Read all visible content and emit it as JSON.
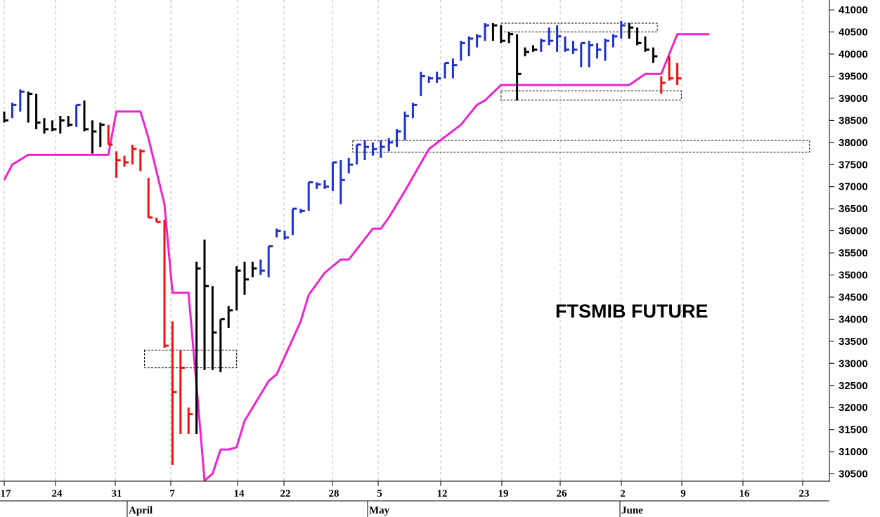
{
  "chart_data": {
    "type": "ohlc-bar",
    "title": "FTSMIB FUTURE",
    "y_axis": {
      "position": "right",
      "ticks": [
        30500,
        31000,
        31500,
        32000,
        32500,
        33000,
        33500,
        34000,
        34500,
        35000,
        35500,
        36000,
        36500,
        37000,
        37500,
        38000,
        38500,
        39000,
        39500,
        40000,
        40500,
        41000
      ],
      "ylim": [
        30250,
        41200
      ]
    },
    "x_axis": {
      "day_ticks": [
        "17",
        "24",
        "31",
        "7",
        "14",
        "22",
        "28",
        "5",
        "12",
        "19",
        "26",
        "2",
        "9",
        "16",
        "23"
      ],
      "months": [
        "April",
        "May",
        "June"
      ]
    },
    "bar_colors": {
      "up": "#1f2fd0",
      "down": "#ee1111",
      "neutral": "#000000"
    },
    "line_color": "#ee22d0",
    "bars": [
      {
        "x": 0,
        "h": 38700,
        "l": 38450,
        "c": 38500,
        "col": "k"
      },
      {
        "x": 1,
        "h": 38900,
        "l": 38550,
        "c": 38850,
        "col": "b"
      },
      {
        "x": 2,
        "h": 39200,
        "l": 38700,
        "c": 39150,
        "col": "b"
      },
      {
        "x": 3,
        "h": 39150,
        "l": 38450,
        "c": 39100,
        "col": "k"
      },
      {
        "x": 4,
        "h": 39100,
        "l": 38300,
        "c": 38450,
        "col": "k"
      },
      {
        "x": 5,
        "h": 38550,
        "l": 38200,
        "c": 38300,
        "col": "k"
      },
      {
        "x": 6,
        "h": 38500,
        "l": 38250,
        "c": 38300,
        "col": "k"
      },
      {
        "x": 7,
        "h": 38600,
        "l": 38200,
        "c": 38500,
        "col": "k"
      },
      {
        "x": 8,
        "h": 38600,
        "l": 38350,
        "c": 38400,
        "col": "k"
      },
      {
        "x": 9,
        "h": 38850,
        "l": 38350,
        "c": 38850,
        "col": "b"
      },
      {
        "x": 10,
        "h": 38950,
        "l": 38250,
        "c": 38300,
        "col": "k"
      },
      {
        "x": 11,
        "h": 38500,
        "l": 37750,
        "c": 38250,
        "col": "k"
      },
      {
        "x": 12,
        "h": 38450,
        "l": 37900,
        "c": 38400,
        "col": "k"
      },
      {
        "x": 13,
        "h": 38400,
        "l": 37950,
        "c": 37950,
        "col": "r"
      },
      {
        "x": 14,
        "h": 37800,
        "l": 37200,
        "c": 37600,
        "col": "r"
      },
      {
        "x": 15,
        "h": 37700,
        "l": 37450,
        "c": 37550,
        "col": "r"
      },
      {
        "x": 16,
        "h": 37950,
        "l": 37500,
        "c": 37850,
        "col": "r"
      },
      {
        "x": 17,
        "h": 37850,
        "l": 37350,
        "c": 37800,
        "col": "r"
      },
      {
        "x": 18,
        "h": 37200,
        "l": 36300,
        "c": 36300,
        "col": "r"
      },
      {
        "x": 19,
        "h": 36300,
        "l": 36200,
        "c": 36200,
        "col": "r"
      },
      {
        "x": 20,
        "h": 36250,
        "l": 33350,
        "c": 33400,
        "col": "r"
      },
      {
        "x": 21,
        "h": 33950,
        "l": 30700,
        "c": 32350,
        "col": "r"
      },
      {
        "x": 22,
        "h": 33300,
        "l": 31400,
        "c": 32900,
        "col": "r"
      },
      {
        "x": 23,
        "h": 32000,
        "l": 31400,
        "c": 31850,
        "col": "r"
      },
      {
        "x": 24,
        "h": 35300,
        "l": 31400,
        "c": 35150,
        "col": "k"
      },
      {
        "x": 25,
        "h": 35800,
        "l": 32850,
        "c": 34750,
        "col": "k"
      },
      {
        "x": 26,
        "h": 34750,
        "l": 32850,
        "c": 33700,
        "col": "k"
      },
      {
        "x": 27,
        "h": 34000,
        "l": 32800,
        "c": 34000,
        "col": "k"
      },
      {
        "x": 28,
        "h": 34300,
        "l": 33800,
        "c": 34200,
        "col": "k"
      },
      {
        "x": 29,
        "h": 35200,
        "l": 34200,
        "c": 35100,
        "col": "k"
      },
      {
        "x": 30,
        "h": 35300,
        "l": 34550,
        "c": 34900,
        "col": "k"
      },
      {
        "x": 31,
        "h": 35300,
        "l": 34950,
        "c": 35150,
        "col": "k"
      },
      {
        "x": 32,
        "h": 35350,
        "l": 35000,
        "c": 35100,
        "col": "b"
      },
      {
        "x": 33,
        "h": 35650,
        "l": 34950,
        "c": 35650,
        "col": "b"
      },
      {
        "x": 34,
        "h": 36050,
        "l": 35850,
        "c": 36000,
        "col": "b"
      },
      {
        "x": 35,
        "h": 36000,
        "l": 35800,
        "c": 35850,
        "col": "b"
      },
      {
        "x": 36,
        "h": 36500,
        "l": 35900,
        "c": 36500,
        "col": "b"
      },
      {
        "x": 37,
        "h": 36500,
        "l": 36400,
        "c": 36450,
        "col": "b"
      },
      {
        "x": 38,
        "h": 37100,
        "l": 36450,
        "c": 37100,
        "col": "b"
      },
      {
        "x": 39,
        "h": 37100,
        "l": 36950,
        "c": 37050,
        "col": "b"
      },
      {
        "x": 40,
        "h": 37150,
        "l": 36950,
        "c": 37000,
        "col": "b"
      },
      {
        "x": 41,
        "h": 37550,
        "l": 36900,
        "c": 37550,
        "col": "b"
      },
      {
        "x": 42,
        "h": 37600,
        "l": 36600,
        "c": 37150,
        "col": "b"
      },
      {
        "x": 43,
        "h": 37650,
        "l": 37300,
        "c": 37500,
        "col": "b"
      },
      {
        "x": 44,
        "h": 37950,
        "l": 37500,
        "c": 37950,
        "col": "b"
      },
      {
        "x": 45,
        "h": 38050,
        "l": 37600,
        "c": 37900,
        "col": "b"
      },
      {
        "x": 46,
        "h": 38000,
        "l": 37700,
        "c": 37850,
        "col": "b"
      },
      {
        "x": 47,
        "h": 38050,
        "l": 37650,
        "c": 37900,
        "col": "b"
      },
      {
        "x": 48,
        "h": 38100,
        "l": 37800,
        "c": 38000,
        "col": "b"
      },
      {
        "x": 49,
        "h": 38300,
        "l": 37900,
        "c": 38250,
        "col": "b"
      },
      {
        "x": 50,
        "h": 38700,
        "l": 38050,
        "c": 38600,
        "col": "b"
      },
      {
        "x": 51,
        "h": 38900,
        "l": 38550,
        "c": 38850,
        "col": "b"
      },
      {
        "x": 52,
        "h": 39600,
        "l": 39050,
        "c": 39500,
        "col": "b"
      },
      {
        "x": 53,
        "h": 39500,
        "l": 39350,
        "c": 39450,
        "col": "b"
      },
      {
        "x": 54,
        "h": 39600,
        "l": 39350,
        "c": 39450,
        "col": "b"
      },
      {
        "x": 55,
        "h": 39800,
        "l": 39450,
        "c": 39800,
        "col": "b"
      },
      {
        "x": 56,
        "h": 39900,
        "l": 39450,
        "c": 39750,
        "col": "b"
      },
      {
        "x": 57,
        "h": 40300,
        "l": 39850,
        "c": 40250,
        "col": "b"
      },
      {
        "x": 58,
        "h": 40400,
        "l": 39950,
        "c": 40350,
        "col": "b"
      },
      {
        "x": 59,
        "h": 40450,
        "l": 40150,
        "c": 40400,
        "col": "b"
      },
      {
        "x": 60,
        "h": 40700,
        "l": 40300,
        "c": 40650,
        "col": "b"
      },
      {
        "x": 61,
        "h": 40700,
        "l": 40300,
        "c": 40650,
        "col": "k"
      },
      {
        "x": 62,
        "h": 40650,
        "l": 40250,
        "c": 40300,
        "col": "k"
      },
      {
        "x": 63,
        "h": 40500,
        "l": 40250,
        "c": 40450,
        "col": "k"
      },
      {
        "x": 64,
        "h": 40450,
        "l": 38950,
        "c": 39550,
        "col": "k"
      },
      {
        "x": 65,
        "h": 40150,
        "l": 39950,
        "c": 40050,
        "col": "k"
      },
      {
        "x": 66,
        "h": 40200,
        "l": 40050,
        "c": 40100,
        "col": "k"
      },
      {
        "x": 67,
        "h": 40350,
        "l": 40050,
        "c": 40300,
        "col": "b"
      },
      {
        "x": 68,
        "h": 40600,
        "l": 40200,
        "c": 40300,
        "col": "b"
      },
      {
        "x": 69,
        "h": 40650,
        "l": 40050,
        "c": 40400,
        "col": "b"
      },
      {
        "x": 70,
        "h": 40400,
        "l": 40050,
        "c": 40100,
        "col": "b"
      },
      {
        "x": 71,
        "h": 40300,
        "l": 40000,
        "c": 40100,
        "col": "b"
      },
      {
        "x": 72,
        "h": 40250,
        "l": 39700,
        "c": 40250,
        "col": "b"
      },
      {
        "x": 73,
        "h": 40300,
        "l": 39700,
        "c": 40200,
        "col": "b"
      },
      {
        "x": 74,
        "h": 40250,
        "l": 39900,
        "c": 40100,
        "col": "b"
      },
      {
        "x": 75,
        "h": 40350,
        "l": 39850,
        "c": 40300,
        "col": "b"
      },
      {
        "x": 76,
        "h": 40450,
        "l": 40150,
        "c": 40400,
        "col": "b"
      },
      {
        "x": 77,
        "h": 40750,
        "l": 40350,
        "c": 40650,
        "col": "b"
      },
      {
        "x": 78,
        "h": 40700,
        "l": 40350,
        "c": 40600,
        "col": "k"
      },
      {
        "x": 79,
        "h": 40600,
        "l": 40200,
        "c": 40250,
        "col": "k"
      },
      {
        "x": 80,
        "h": 40400,
        "l": 40050,
        "c": 40100,
        "col": "k"
      },
      {
        "x": 81,
        "h": 40150,
        "l": 39800,
        "c": 39950,
        "col": "k"
      },
      {
        "x": 82,
        "h": 39500,
        "l": 39100,
        "c": 39350,
        "col": "r"
      },
      {
        "x": 83,
        "h": 39950,
        "l": 39400,
        "c": 39450,
        "col": "r"
      },
      {
        "x": 84,
        "h": 39800,
        "l": 39300,
        "c": 39450,
        "col": "r"
      }
    ],
    "line": [
      {
        "x": 0,
        "y": 37150
      },
      {
        "x": 1,
        "y": 37500
      },
      {
        "x": 3,
        "y": 37720
      },
      {
        "x": 13,
        "y": 37720
      },
      {
        "x": 14,
        "y": 38700
      },
      {
        "x": 17,
        "y": 38700
      },
      {
        "x": 18,
        "y": 38100
      },
      {
        "x": 20,
        "y": 36600
      },
      {
        "x": 21,
        "y": 34600
      },
      {
        "x": 23,
        "y": 34600
      },
      {
        "x": 24,
        "y": 32500
      },
      {
        "x": 25,
        "y": 30350
      },
      {
        "x": 26,
        "y": 30500
      },
      {
        "x": 27,
        "y": 31050
      },
      {
        "x": 28,
        "y": 31050
      },
      {
        "x": 29,
        "y": 31100
      },
      {
        "x": 30,
        "y": 31700
      },
      {
        "x": 33,
        "y": 32600
      },
      {
        "x": 34,
        "y": 32750
      },
      {
        "x": 36,
        "y": 33550
      },
      {
        "x": 37,
        "y": 33950
      },
      {
        "x": 38,
        "y": 34550
      },
      {
        "x": 40,
        "y": 35050
      },
      {
        "x": 42,
        "y": 35350
      },
      {
        "x": 43,
        "y": 35350
      },
      {
        "x": 46,
        "y": 36050
      },
      {
        "x": 47,
        "y": 36050
      },
      {
        "x": 48,
        "y": 36300
      },
      {
        "x": 50,
        "y": 36900
      },
      {
        "x": 53,
        "y": 37850
      },
      {
        "x": 57,
        "y": 38400
      },
      {
        "x": 59,
        "y": 38850
      },
      {
        "x": 60,
        "y": 38950
      },
      {
        "x": 62,
        "y": 39300
      },
      {
        "x": 78,
        "y": 39300
      },
      {
        "x": 80,
        "y": 39550
      },
      {
        "x": 82,
        "y": 39550
      },
      {
        "x": 84,
        "y": 40450
      },
      {
        "x": 88,
        "y": 40450
      }
    ],
    "rectangles": [
      {
        "x1": 17.5,
        "x2": 29,
        "y1": 33300,
        "y2": 32900
      },
      {
        "x1": 62,
        "x2": 81.5,
        "y1": 40700,
        "y2": 40500
      },
      {
        "x1": 43.5,
        "x2": 100.5,
        "y1": 38050,
        "y2": 37780
      },
      {
        "x1": 62,
        "x2": 84.5,
        "y1": 39170,
        "y2": 38960
      }
    ]
  }
}
